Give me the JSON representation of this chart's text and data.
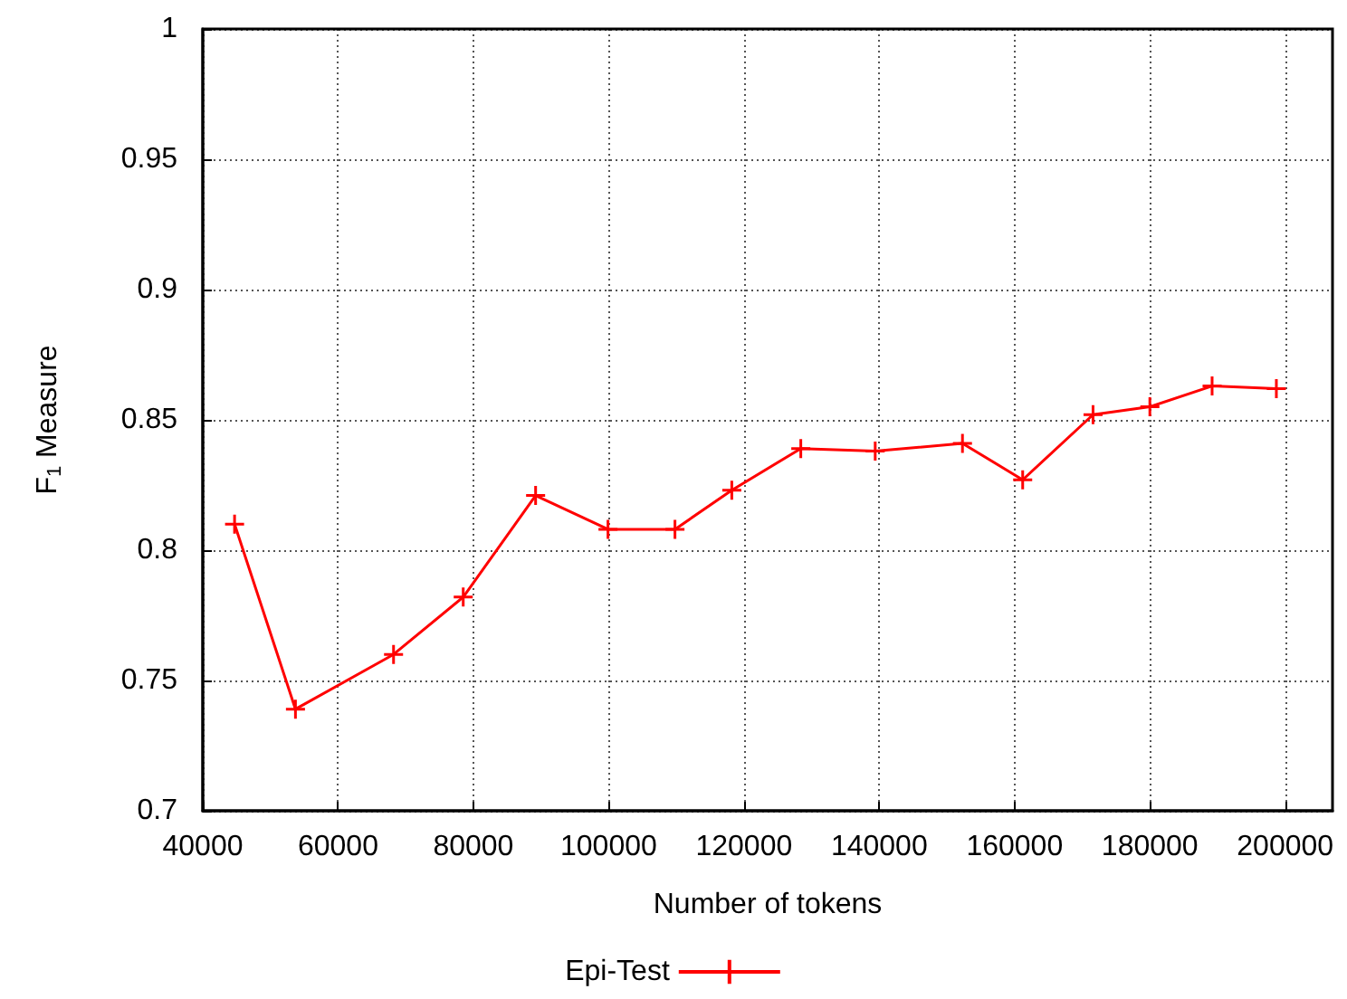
{
  "chart_data": {
    "type": "line",
    "xlabel": "Number of tokens",
    "ylabel": "F$_{1}$ Measure",
    "x": [
      44700,
      53700,
      68200,
      78500,
      89200,
      99900,
      109800,
      118200,
      128400,
      139400,
      152300,
      161200,
      171600,
      180000,
      189200,
      198700
    ],
    "series": [
      {
        "name": "Epi-Test",
        "color": "#ff0000",
        "values": [
          0.81,
          0.739,
          0.76,
          0.782,
          0.821,
          0.808,
          0.808,
          0.823,
          0.839,
          0.838,
          0.841,
          0.827,
          0.852,
          0.855,
          0.863,
          0.862
        ]
      }
    ],
    "xlim": [
      40000,
      207000
    ],
    "xticks": [
      40000,
      60000,
      80000,
      100000,
      120000,
      140000,
      160000,
      180000,
      200000
    ],
    "ylim": [
      0.7,
      1
    ],
    "yticks": [
      0.7,
      0.75,
      0.8,
      0.85,
      0.9,
      0.95,
      1
    ],
    "grid": true,
    "legend": "bottom",
    "marker": "cross",
    "line_style": "solid"
  }
}
